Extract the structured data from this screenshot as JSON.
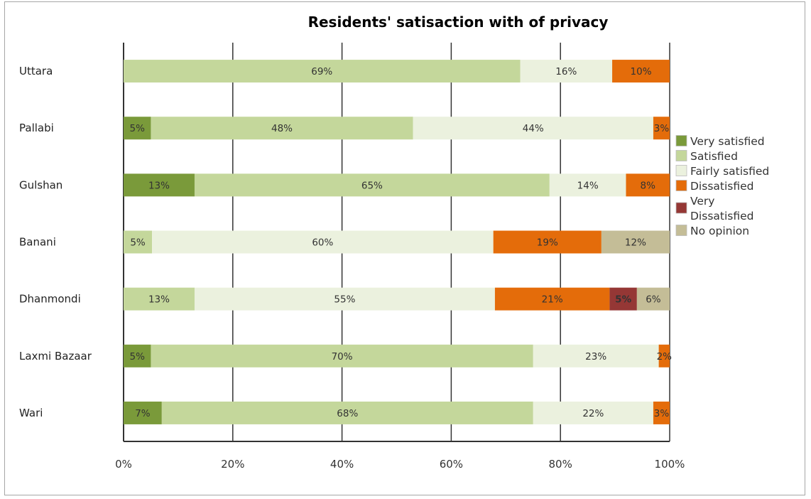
{
  "chart_data": {
    "type": "bar",
    "orientation": "horizontal",
    "stacked": "percent",
    "title": "Residents' satisaction with of privacy",
    "xlabel": "",
    "ylabel": "",
    "xlim": [
      0,
      100
    ],
    "x_ticks": [
      "0%",
      "20%",
      "40%",
      "60%",
      "80%",
      "100%"
    ],
    "grid": true,
    "legend_position": "right",
    "categories": [
      "Uttara",
      "Pallabi",
      "Gulshan",
      "Banani",
      "Dhanmondi",
      "Laxmi Bazaar",
      "Wari"
    ],
    "series": [
      {
        "name": "Very satisfied",
        "color": "#7a9a3a",
        "label_color": "#333333",
        "values": [
          0,
          5,
          13,
          0,
          0,
          5,
          7
        ]
      },
      {
        "name": "Satisfied",
        "color": "#c4d79b",
        "label_color": "#333333",
        "values": [
          69,
          48,
          65,
          5,
          13,
          70,
          68
        ]
      },
      {
        "name": "Fairly satisfied",
        "color": "#ebf1de",
        "label_color": "#333333",
        "values": [
          16,
          44,
          14,
          60,
          55,
          23,
          22
        ]
      },
      {
        "name": "Dissatisfied",
        "color": "#e46c0a",
        "label_color": "#333333",
        "values": [
          10,
          3,
          8,
          19,
          21,
          2,
          3
        ]
      },
      {
        "name": "Very Dissatisfied",
        "color": "#953735",
        "label_color": "#ffffff",
        "values": [
          0,
          0,
          0,
          0,
          5,
          0,
          0
        ]
      },
      {
        "name": "No opinion",
        "color": "#c4bd97",
        "label_color": "#333333",
        "values": [
          0,
          0,
          0,
          12,
          6,
          0,
          0
        ]
      }
    ],
    "legend_labels": [
      [
        "Very satisfied"
      ],
      [
        "Satisfied"
      ],
      [
        "Fairly satisfied"
      ],
      [
        "Dissatisfied"
      ],
      [
        "Very",
        "Dissatisfied"
      ],
      [
        "No opinion"
      ]
    ]
  }
}
